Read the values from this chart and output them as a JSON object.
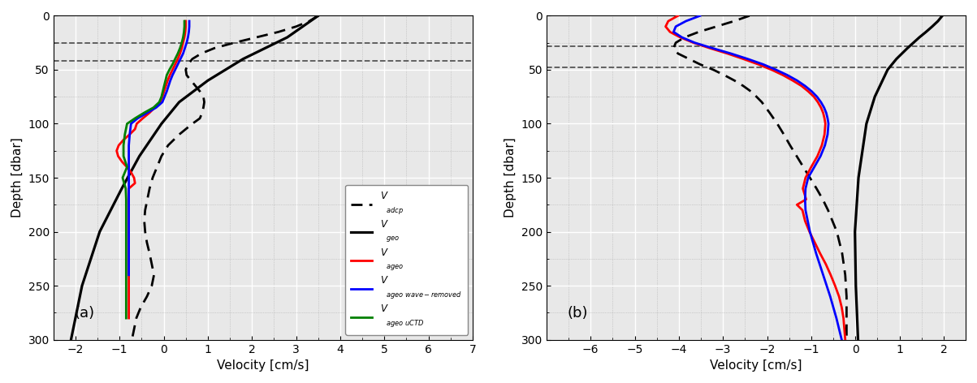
{
  "panel_a": {
    "title": "(a)",
    "xlabel": "Velocity [cm/s]",
    "ylabel": "Depth [dbar]",
    "xlim": [
      -2.5,
      7.0
    ],
    "ylim": [
      300,
      0
    ],
    "xticks": [
      -2,
      -1,
      0,
      1,
      2,
      3,
      4,
      5,
      6,
      7
    ],
    "yticks": [
      0,
      50,
      100,
      150,
      200,
      250,
      300
    ],
    "hlines_dashed_depths": [
      25,
      42
    ],
    "bg_color": "#e8e8e8"
  },
  "panel_b": {
    "title": "(b)",
    "xlabel": "Velocity [cm/s]",
    "ylabel": "Depth [dbar]",
    "xlim": [
      -7.0,
      2.5
    ],
    "ylim": [
      300,
      0
    ],
    "xticks": [
      -6,
      -5,
      -4,
      -3,
      -2,
      -1,
      0,
      1,
      2
    ],
    "yticks": [
      0,
      50,
      100,
      150,
      200,
      250,
      300
    ],
    "hlines_dashed_depths": [
      28,
      48
    ],
    "bg_color": "#e8e8e8"
  },
  "line_colors": {
    "adcp": "#000000",
    "geo": "#000000",
    "ageo": "#ff0000",
    "ageo_wave": "#0000ff",
    "uctd": "#008000"
  },
  "legend_entries": [
    "$V_{adcp}$",
    "$V_{geo}$",
    "$V_{ageo}$",
    "$V_{ageo\\ wave-removed}$",
    "$V_{ageo\\ uCTD}$"
  ]
}
